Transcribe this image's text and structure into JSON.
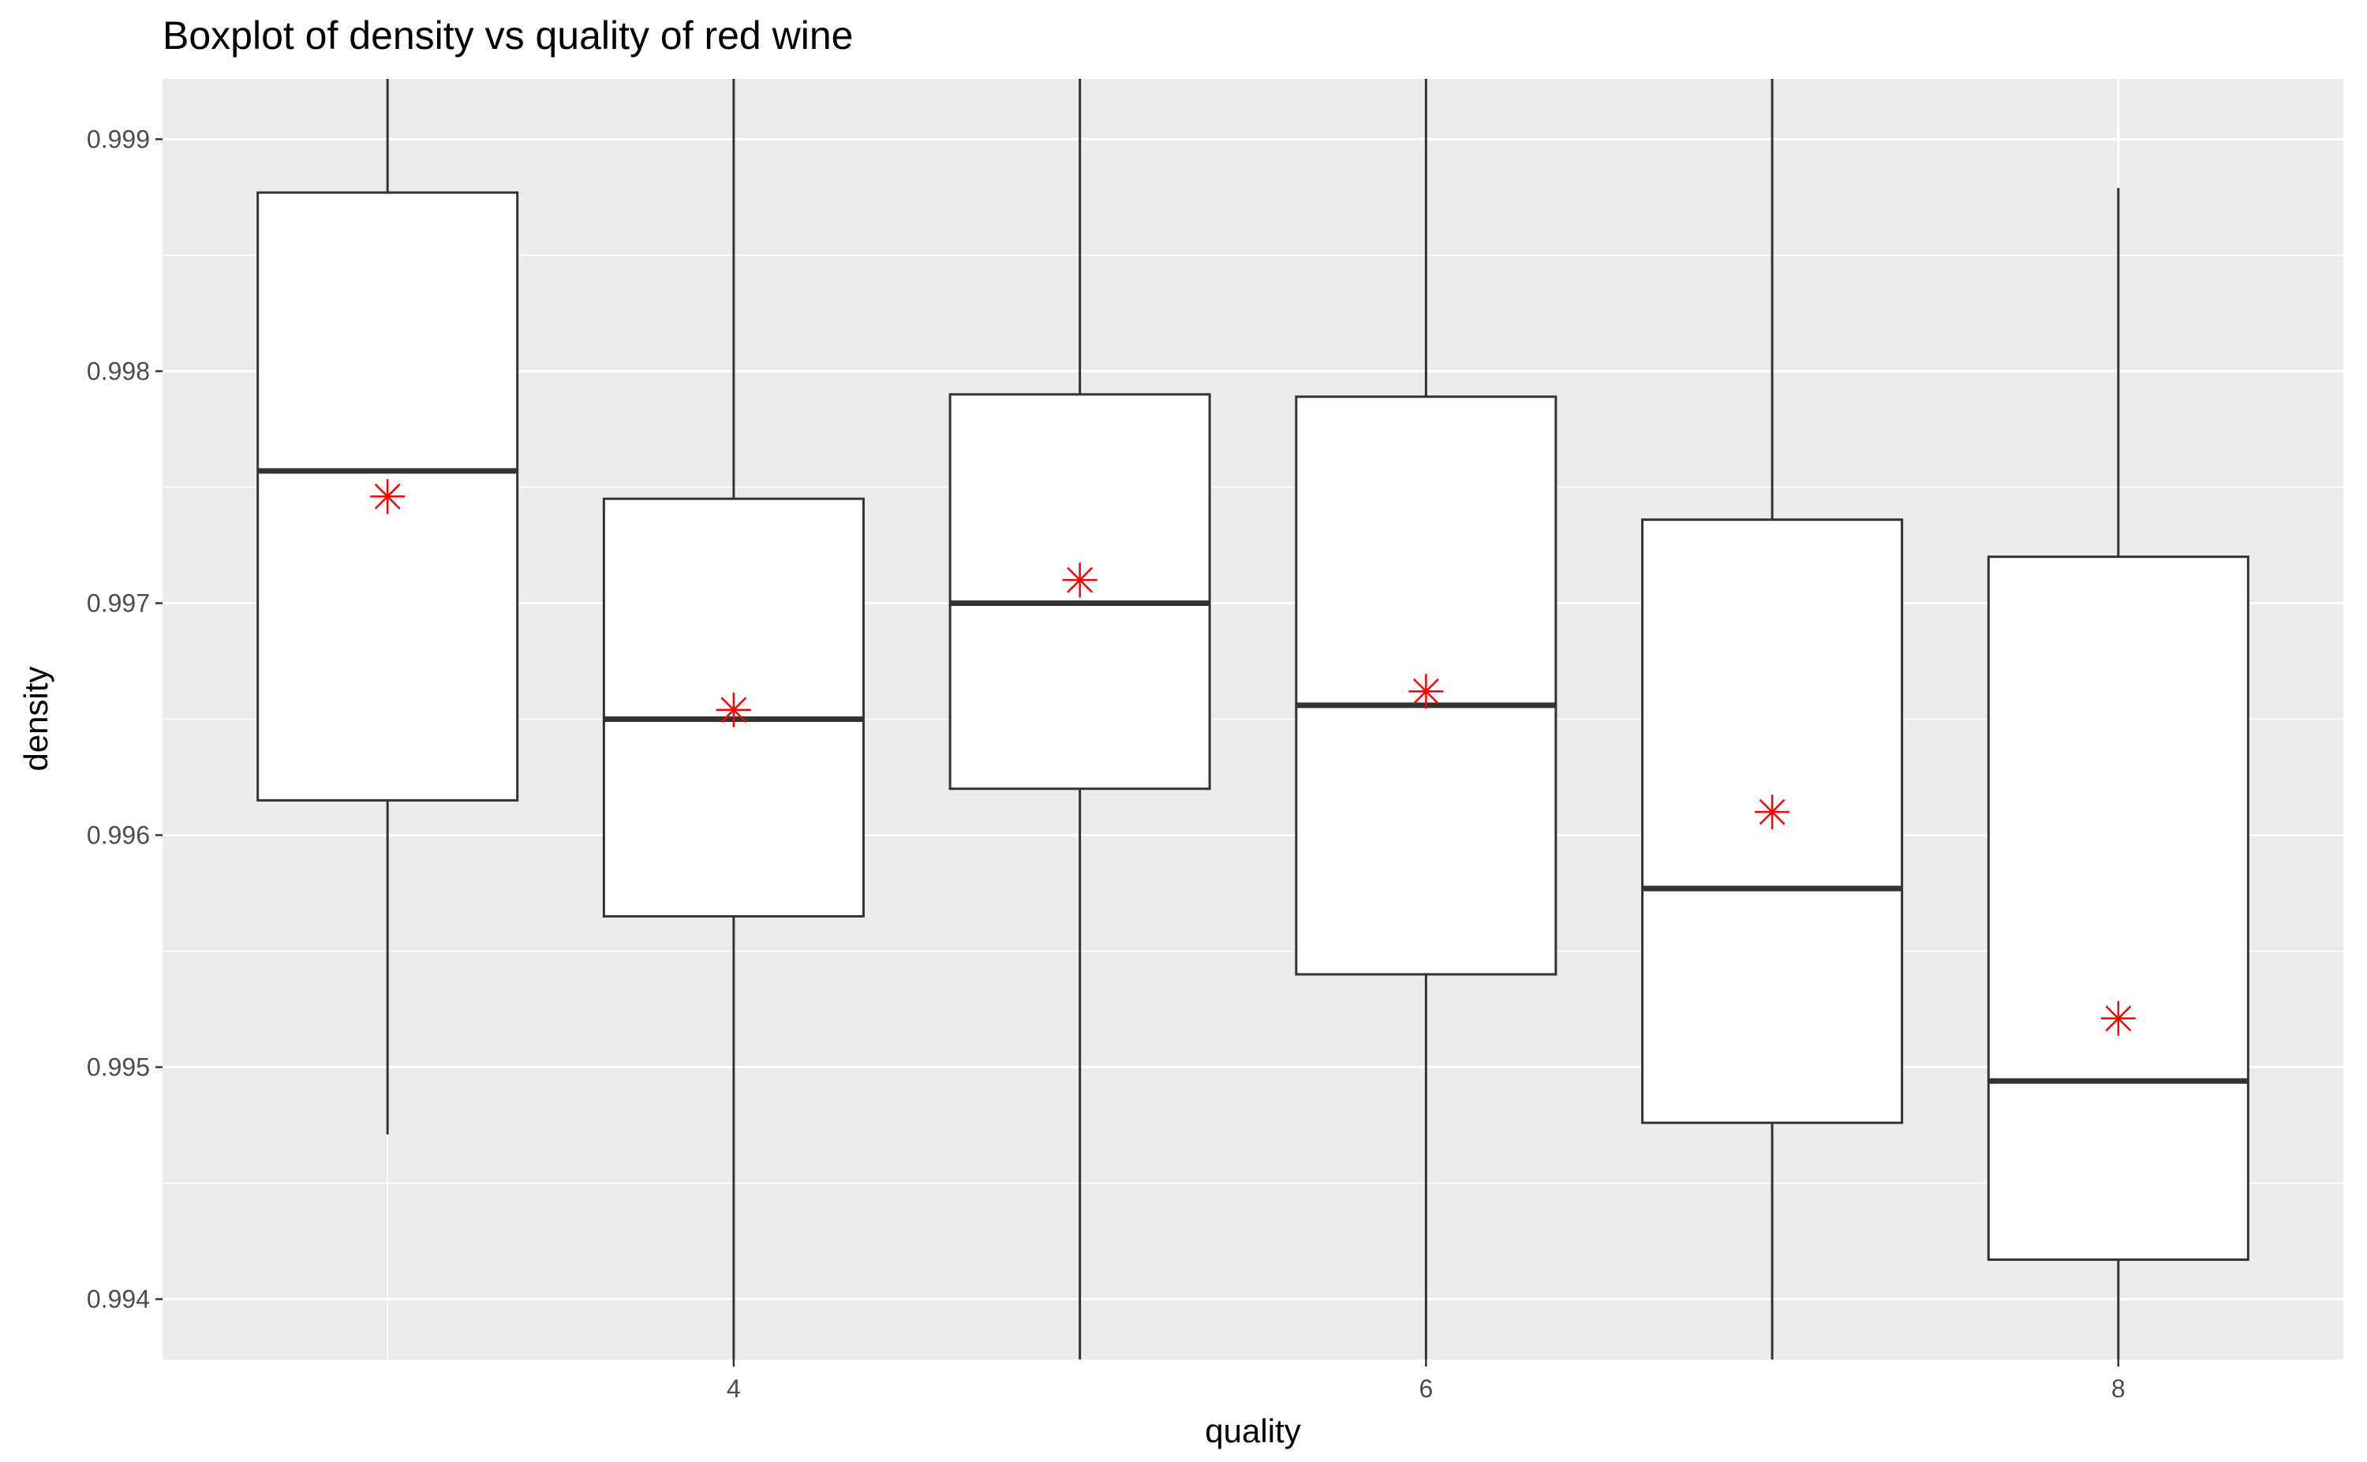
{
  "chart_data": {
    "type": "boxplot",
    "title": "Boxplot of density vs quality of red wine",
    "xlabel": "quality",
    "ylabel": "density",
    "xlim": [
      2.35,
      8.65
    ],
    "ylim": [
      0.99374,
      0.99926
    ],
    "x_ticks": [
      4,
      6,
      8
    ],
    "x_tick_labels": [
      "4",
      "6",
      "8"
    ],
    "x_minor_gridlines": [
      3,
      5,
      7
    ],
    "y_ticks": [
      0.994,
      0.995,
      0.996,
      0.997,
      0.998,
      0.999
    ],
    "y_tick_labels": [
      "0.994",
      "0.995",
      "0.996",
      "0.997",
      "0.998",
      "0.999"
    ],
    "grid": true,
    "panel_background": "#ebebeb",
    "gridline_color": "#ffffff",
    "box_fill": "#ffffff",
    "box_stroke": "#333333",
    "mean_marker": "asterisk",
    "mean_color": "#ff0000",
    "groups": [
      {
        "quality": 3,
        "q1": 0.99615,
        "median": 0.99757,
        "q3": 0.99877,
        "whisker_low": 0.99471,
        "whisker_high": 0.99926,
        "mean": 0.99746
      },
      {
        "quality": 4,
        "q1": 0.99565,
        "median": 0.9965,
        "q3": 0.99745,
        "whisker_low": 0.99374,
        "whisker_high": 0.99926,
        "mean": 0.99654
      },
      {
        "quality": 5,
        "q1": 0.9962,
        "median": 0.997,
        "q3": 0.9979,
        "whisker_low": 0.99374,
        "whisker_high": 0.99926,
        "mean": 0.9971
      },
      {
        "quality": 6,
        "q1": 0.9954,
        "median": 0.99656,
        "q3": 0.99789,
        "whisker_low": 0.99374,
        "whisker_high": 0.99926,
        "mean": 0.99662
      },
      {
        "quality": 7,
        "q1": 0.99476,
        "median": 0.99577,
        "q3": 0.99736,
        "whisker_low": 0.99374,
        "whisker_high": 0.99926,
        "mean": 0.9961
      },
      {
        "quality": 8,
        "q1": 0.99417,
        "median": 0.99494,
        "q3": 0.9972,
        "whisker_low": 0.99374,
        "whisker_high": 0.99879,
        "mean": 0.99521
      }
    ]
  }
}
